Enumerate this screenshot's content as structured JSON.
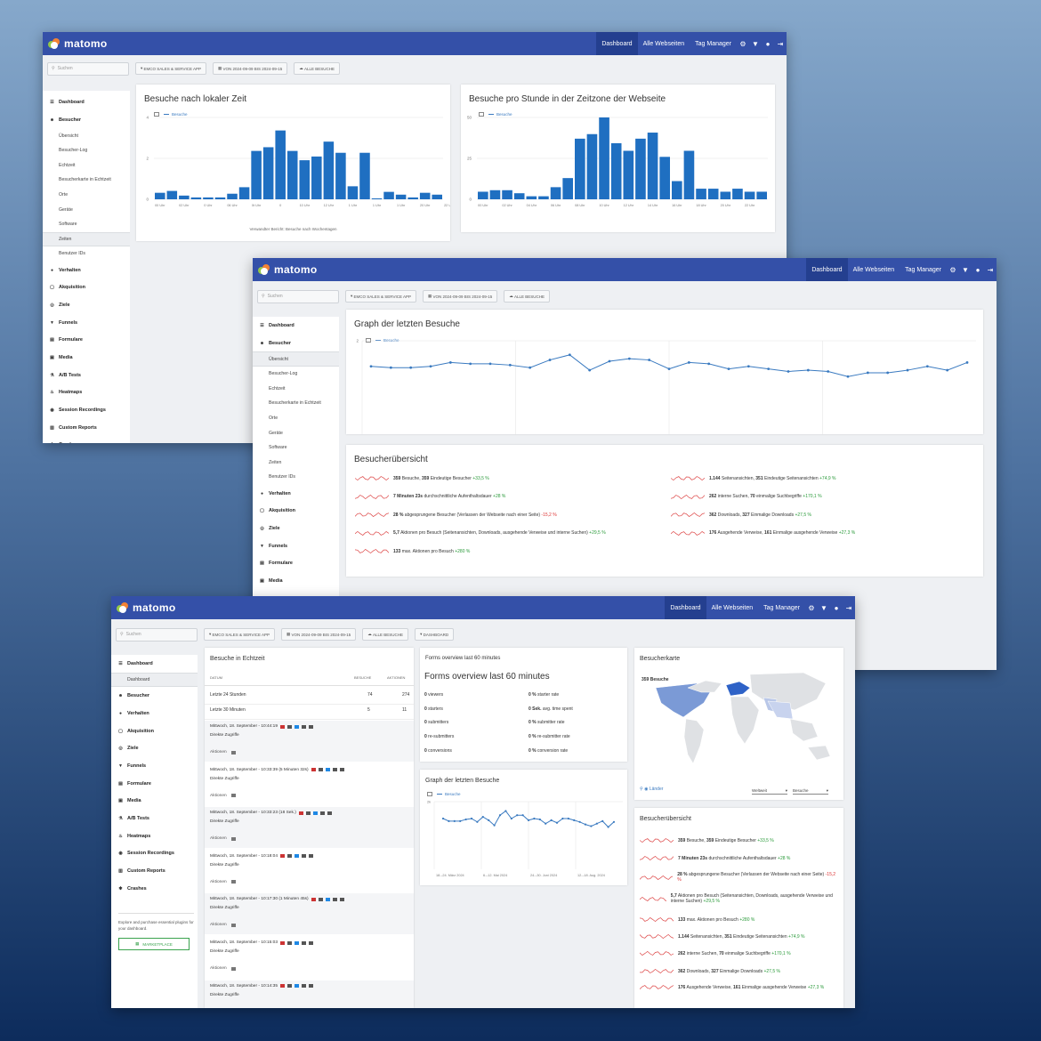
{
  "brand": "matomo",
  "nav": {
    "dashboard": "Dashboard",
    "all_sites": "Alle Webseiten",
    "tag_manager": "Tag Manager"
  },
  "search_placeholder": "Suchen",
  "pills": {
    "site": "EMCO SALES & SERVICE APP",
    "date": "VON 2024-09-09 BIS 2024-09-15",
    "segment": "ALLE BESUCHE",
    "dashboard": "DASHBOARD"
  },
  "colors": {
    "topbar": "#3450a8",
    "series": "#3a7ac0",
    "bars": "#1f6fc1"
  },
  "sidebar": {
    "items": [
      "Dashboard",
      "Besucher",
      "Verhalten",
      "Akquisition",
      "Ziele",
      "Funnels",
      "Formulare",
      "Media",
      "A/B Tests",
      "Heatmaps",
      "Session Recordings",
      "Custom Reports",
      "Crashes"
    ],
    "visitor_sub": [
      "Übersicht",
      "Besucher-Log",
      "Echtzeit",
      "Besucherkarte in Echtzeit",
      "Orte",
      "Geräte",
      "Software",
      "Zeiten",
      "Benutzer IDs"
    ],
    "dashboard_sub": "Dashboard",
    "promo": "Explore and purchase essential plugins for your dashboard.",
    "marketplace": "MARKETPLACE"
  },
  "win1": {
    "chart_local": {
      "title": "Besuche nach lokaler Zeit",
      "legend": "Besuche",
      "yticks": [
        "4",
        "2",
        "0"
      ],
      "xticks": [
        "00 Uhr",
        "02 Uhr",
        "0 Uhr",
        "06 Uhr",
        "0t Uhr",
        "0",
        "10 Uhr",
        "12 Uhr",
        "1 Uhr",
        "1 Uhr",
        "1 Uhr",
        "20 Uhr",
        "22 Uhr"
      ],
      "footer": "Verwandter Bericht: Besuche nach Wochentagen"
    },
    "chart_site": {
      "title": "Besuche pro Stunde in der Zeitzone der Webseite",
      "legend": "Besuche",
      "yticks": [
        "50",
        "25",
        "0"
      ],
      "xticks": [
        "00 Uhr",
        "02 Uhr",
        "04 Uhr",
        "06 Uhr",
        "08 Uhr",
        "10 Uhr",
        "12 Uhr",
        "14 Uhr",
        "16 Uhr",
        "18 Uhr",
        "20 Uhr",
        "22 Uhr"
      ]
    }
  },
  "win2": {
    "graph": {
      "title": "Graph der letzten Besuche",
      "legend": "Besuche",
      "yticks": [
        "2",
        "2k",
        "1"
      ],
      "xticks": [
        "18.–24. März 2024",
        "6.–12. Mai 2° 2K",
        "24.–30. Juni 2° 3K",
        "12.–18. Au_ 2_ 3K"
      ]
    },
    "overview_title": "Besucherübersicht",
    "overview_left": [
      {
        "b1": "359",
        "t1": "Besuche,",
        "b2": "359",
        "t2": "Eindeutige Besucher",
        "ch": "+33,5 %",
        "dir": "up"
      },
      {
        "b1": "7 Minuten 23s",
        "t1": "durchschnittliche Aufenthaltsdauer",
        "b2": "",
        "t2": "",
        "ch": "+28 %",
        "dir": "up"
      },
      {
        "b1": "28 %",
        "t1": "abgesprungene Besucher (Verlassen der Webseite nach einer Seite)",
        "b2": "",
        "t2": "",
        "ch": "-15,2 %",
        "dir": "dn"
      },
      {
        "b1": "5,7",
        "t1": "Aktionen pro Besuch (Seitenansichten, Downloads, ausgehende Verweise und interne Suchen)",
        "b2": "",
        "t2": "",
        "ch": "+29,5 %",
        "dir": "up"
      },
      {
        "b1": "133",
        "t1": "max. Aktionen pro Besuch",
        "b2": "",
        "t2": "",
        "ch": "+280 %",
        "dir": "up"
      }
    ],
    "overview_right": [
      {
        "b1": "1.144",
        "t1": "Seitenansichten,",
        "b2": "351",
        "t2": "Eindeutige Seitenansichten",
        "ch": "+74,9 %",
        "dir": "up"
      },
      {
        "b1": "262",
        "t1": "interne Suchen,",
        "b2": "70",
        "t2": "einmalige Suchbegriffe",
        "ch": "+170,1 %",
        "dir": "up"
      },
      {
        "b1": "362",
        "t1": "Downloads,",
        "b2": "327",
        "t2": "Einmalige Downloads",
        "ch": "+27,5 %",
        "dir": "up"
      },
      {
        "b1": "176",
        "t1": "Ausgehende Verweise,",
        "b2": "161",
        "t2": "Einmalige ausgehende Verweise",
        "ch": "+27,3 %",
        "dir": "up"
      }
    ]
  },
  "win3": {
    "realtime": {
      "title": "Besuche in Echtzeit",
      "headers": [
        "DATUM",
        "BESUCHE",
        "AKTIONEN"
      ],
      "rows": [
        [
          "Letzte 24 Stunden",
          "74",
          "274"
        ],
        [
          "Letzte 30 Minuten",
          "5",
          "11"
        ]
      ],
      "visits": [
        {
          "time": "Mittwoch, 18. September - 10:44:19",
          "src": "Direkte Zugriffe",
          "act": "Aktionen"
        },
        {
          "time": "Mittwoch, 18. September - 10:33:39 (5 Minuten 32s)",
          "src": "Direkte Zugriffe",
          "act": "Aktionen"
        },
        {
          "time": "Mittwoch, 18. September - 10:33:23 (18 Sek.)",
          "src": "Direkte Zugriffe",
          "act": "Aktionen"
        },
        {
          "time": "Mittwoch, 18. September - 10:18:04",
          "src": "Direkte Zugriffe",
          "act": "Aktionen"
        },
        {
          "time": "Mittwoch, 18. September - 10:17:30 (1 Minuten 45s)",
          "src": "Direkte Zugriffe",
          "act": "Aktionen"
        },
        {
          "time": "Mittwoch, 18. September - 10:15:03",
          "src": "Direkte Zugriffe",
          "act": "Aktionen"
        },
        {
          "time": "Mittwoch, 18. September - 10:14:35",
          "src": "Direkte Zugriffe",
          "act": ""
        }
      ]
    },
    "forms": {
      "small_title": "Forms overview last 60 minutes",
      "title": "Forms overview last 60 minutes",
      "left": [
        [
          "0",
          "viewers"
        ],
        [
          "0",
          "starters"
        ],
        [
          "0",
          "submitters"
        ],
        [
          "0",
          "re-submitters"
        ],
        [
          "0",
          "conversions"
        ]
      ],
      "right": [
        [
          "0 %",
          "starter rate"
        ],
        [
          "0 Sek.",
          "avg. time spent"
        ],
        [
          "0 %",
          "submitter rate"
        ],
        [
          "0 %",
          "re-submitter rate"
        ],
        [
          "0 %",
          "conversion rate"
        ]
      ]
    },
    "graph": {
      "title": "Graph der letzten Besuche",
      "legend": "Besuche",
      "ytick": "2k",
      "xticks": [
        "18.–24. März 2024",
        "6.–12. Mai 2024",
        "24.–30. Juni 2024",
        "12.–18. Aug. 2024"
      ]
    },
    "map": {
      "title": "Besucherkarte",
      "label": "359 Besuche",
      "zoom": "Länder",
      "sel1": "Weltweit",
      "sel2": "Besuche"
    },
    "overview": {
      "title": "Besucherübersicht",
      "rows": [
        {
          "b1": "359",
          "t1": "Besuche,",
          "b2": "359",
          "t2": "Eindeutige Besucher",
          "ch": "+33,5 %",
          "dir": "up"
        },
        {
          "b1": "7 Minuten 23s",
          "t1": "durchschnittliche Aufenthaltsdauer",
          "b2": "",
          "t2": "",
          "ch": "+28 %",
          "dir": "up"
        },
        {
          "b1": "28 %",
          "t1": "abgesprungene Besucher (Verlassen der Webseite nach einer Seite)",
          "b2": "",
          "t2": "",
          "ch": "-15,2 %",
          "dir": "dn"
        },
        {
          "b1": "5,7",
          "t1": "Aktionen pro Besuch (Seitenansichten, Downloads, ausgehende Verweise und interne Suchen)",
          "b2": "",
          "t2": "",
          "ch": "+29,5 %",
          "dir": "up"
        },
        {
          "b1": "133",
          "t1": "max. Aktionen pro Besuch",
          "b2": "",
          "t2": "",
          "ch": "+280 %",
          "dir": "up"
        },
        {
          "b1": "1.144",
          "t1": "Seitenansichten,",
          "b2": "351",
          "t2": "Eindeutige Seitenansichten",
          "ch": "+74,9 %",
          "dir": "up"
        },
        {
          "b1": "262",
          "t1": "interne Suchen,",
          "b2": "70",
          "t2": "einmalige Suchbegriffe",
          "ch": "+170,1 %",
          "dir": "up"
        },
        {
          "b1": "362",
          "t1": "Downloads,",
          "b2": "327",
          "t2": "Einmalige Downloads",
          "ch": "+27,5 %",
          "dir": "up"
        },
        {
          "b1": "176",
          "t1": "Ausgehende Verweise,",
          "b2": "161",
          "t2": "Einmalige ausgehende Verweise",
          "ch": "+27,3 %",
          "dir": "up"
        }
      ]
    }
  },
  "chart_data": [
    {
      "type": "bar",
      "title": "Besuche nach lokaler Zeit",
      "series": [
        {
          "name": "Besuche",
          "values": [
            0.35,
            0.45,
            0.2,
            0.1,
            0.1,
            0.1,
            0.3,
            0.65,
            2.6,
            2.8,
            3.7,
            2.6,
            2.1,
            2.3,
            3.1,
            2.5,
            0.7,
            2.5,
            0.05,
            0.4,
            0.25,
            0.1,
            0.35,
            0.25
          ]
        }
      ],
      "ylim": [
        0,
        4.4
      ]
    },
    {
      "type": "bar",
      "title": "Besuche pro Stunde in der Zeitzone der Webseite",
      "series": [
        {
          "name": "Besuche",
          "values": [
            5,
            6,
            6,
            4,
            2,
            2,
            8,
            14,
            40,
            43,
            54,
            37,
            32,
            40,
            44,
            28,
            12,
            32,
            7,
            7,
            5,
            7,
            5,
            5
          ]
        }
      ],
      "ylim": [
        0,
        54
      ]
    },
    {
      "type": "line",
      "title": "Graph der letzten Besuche",
      "series": [
        {
          "name": "Besuche",
          "values": [
            60,
            59,
            59,
            60,
            63,
            62,
            62,
            61,
            59,
            65,
            69,
            57,
            64,
            66,
            65,
            58,
            63,
            62,
            58,
            60,
            58,
            56,
            57,
            56,
            52,
            55,
            55,
            57,
            60,
            57,
            63
          ]
        }
      ],
      "ylim": [
        0,
        80
      ]
    },
    {
      "type": "line",
      "title": "Graph der letzten Besuche",
      "series": [
        {
          "name": "Besuche",
          "values": [
            60,
            57,
            57,
            57,
            59,
            60,
            56,
            62,
            58,
            52,
            64,
            69,
            60,
            64,
            64,
            58,
            60,
            59,
            54,
            58,
            55,
            60,
            60,
            58,
            56,
            53,
            51,
            54,
            57,
            50,
            56
          ]
        }
      ],
      "ylim": [
        0,
        80
      ]
    }
  ]
}
